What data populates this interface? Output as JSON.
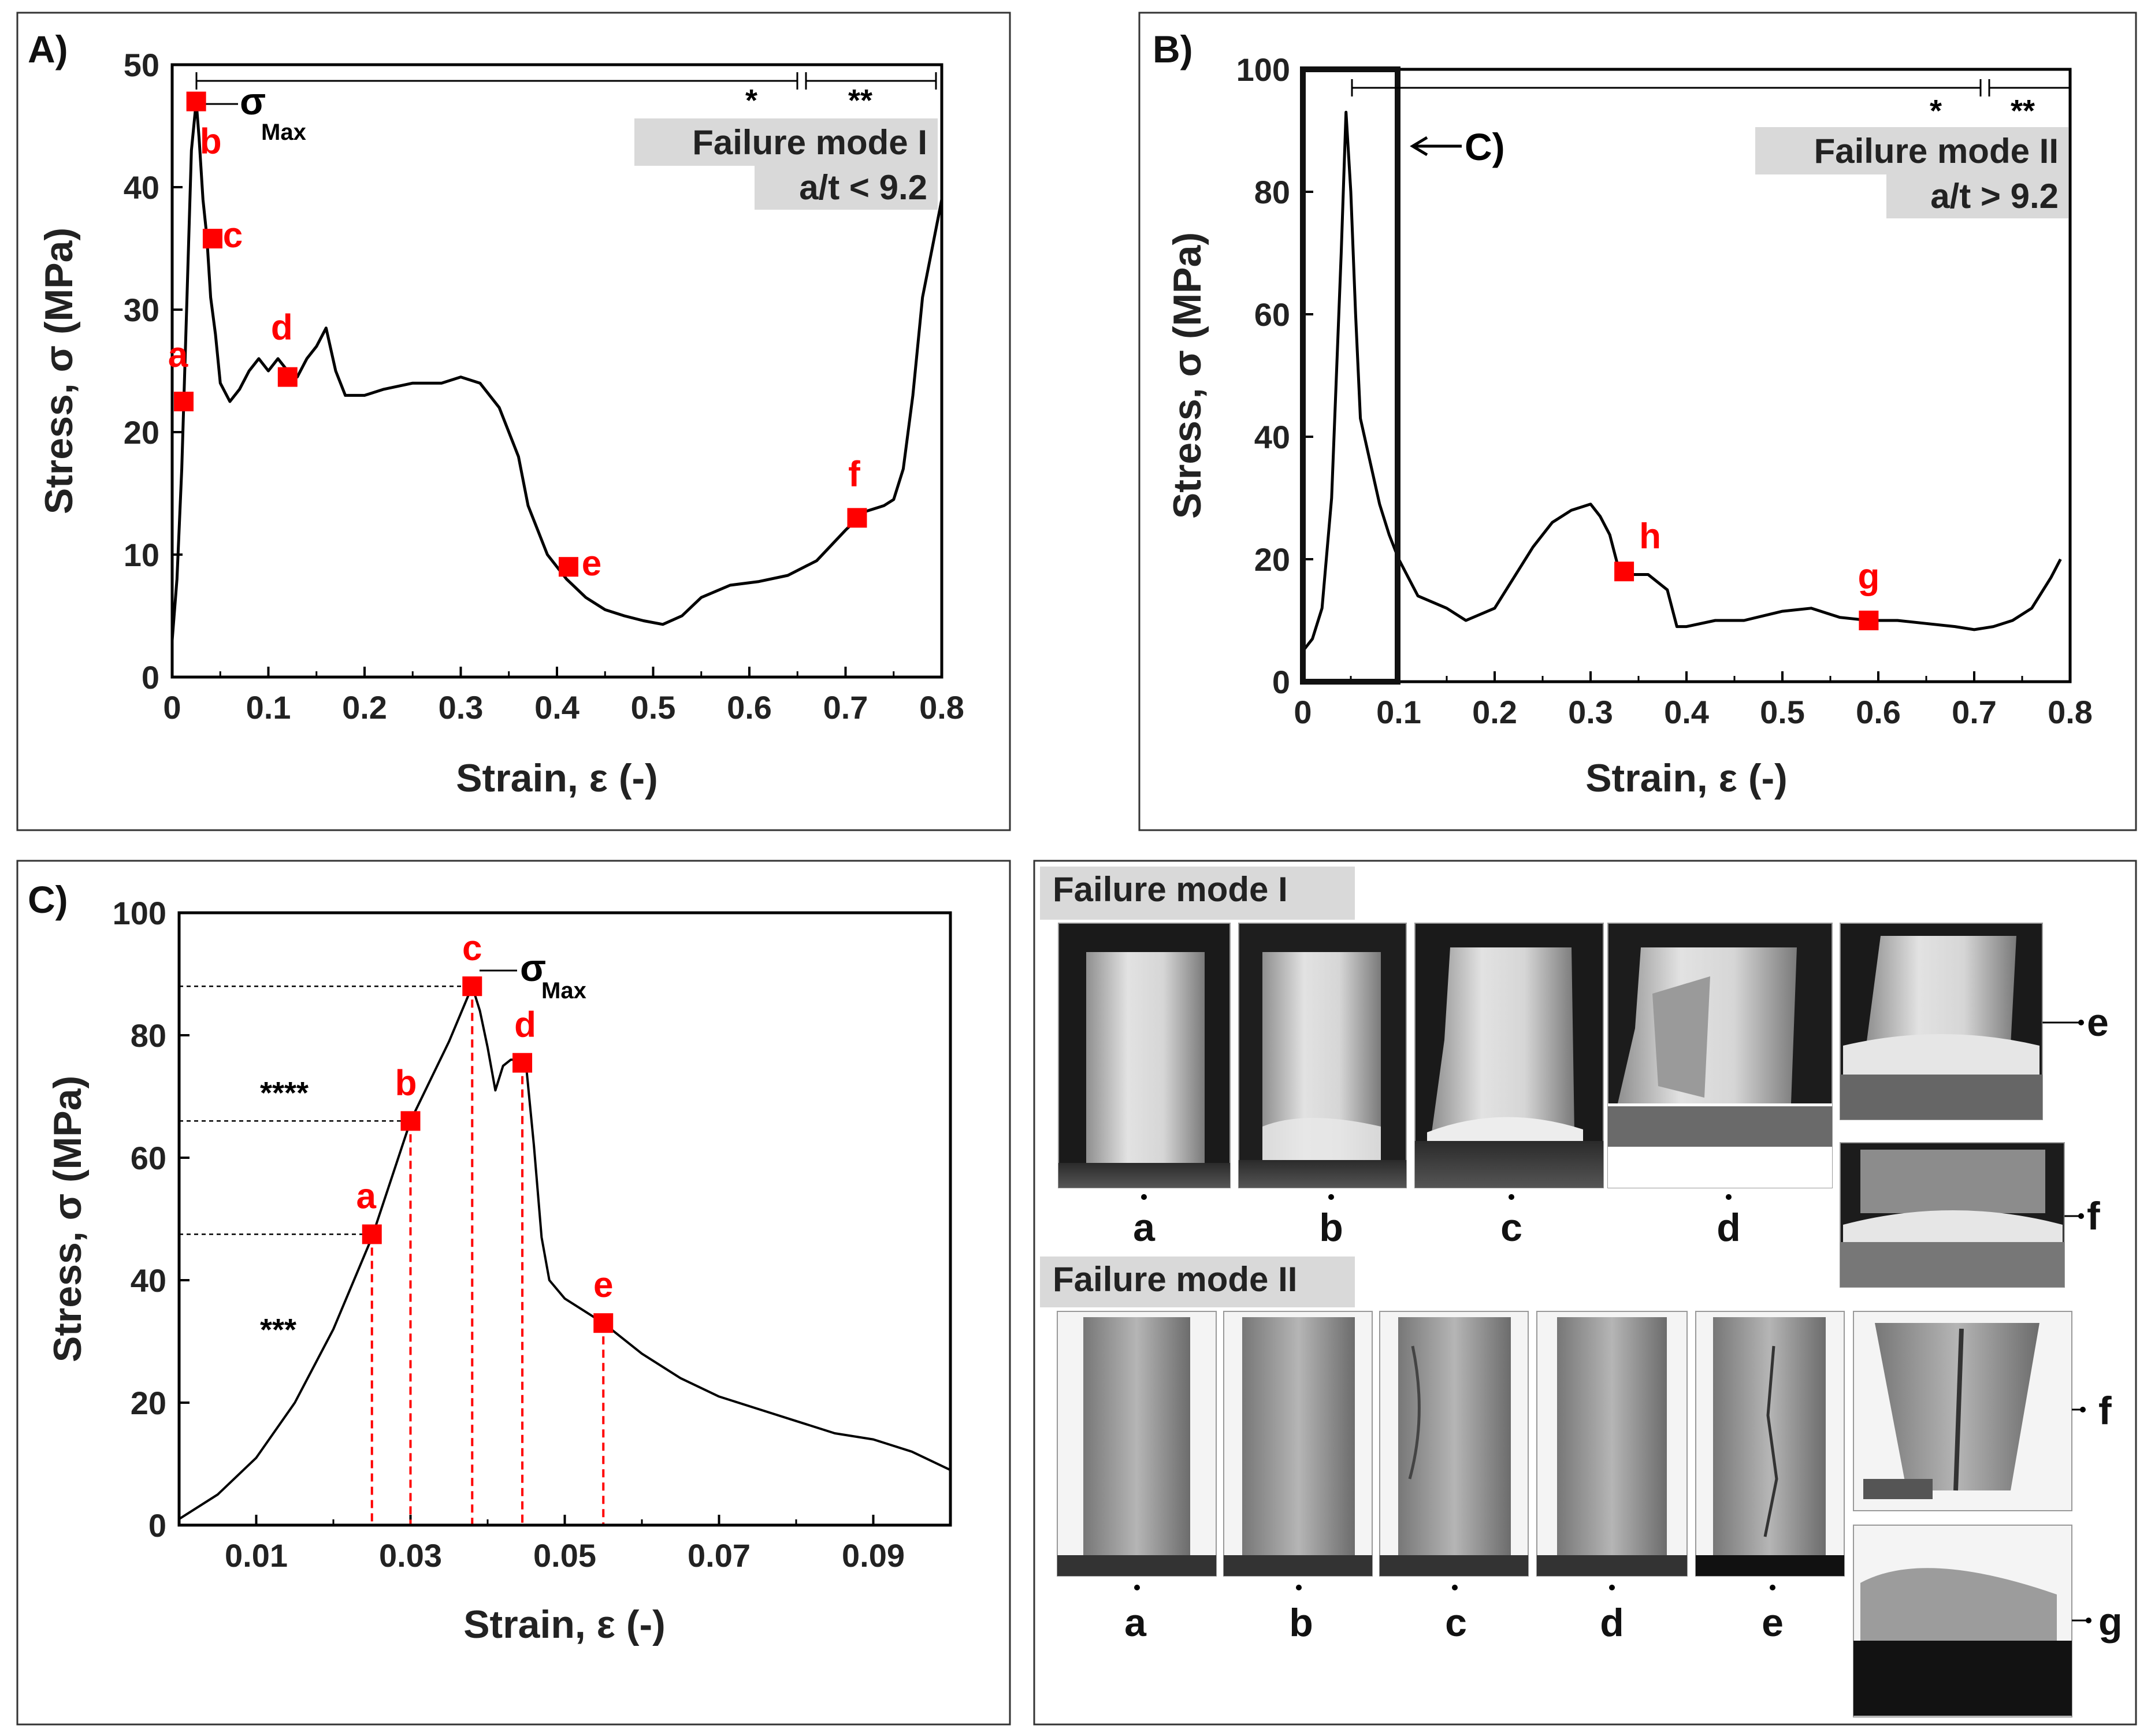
{
  "chart_data": [
    {
      "panel": "A)",
      "type": "line",
      "xlabel": "Strain, ε (-)",
      "ylabel": "Stress, σ (MPa)",
      "xlim": [
        0,
        0.8
      ],
      "ylim": [
        0,
        50
      ],
      "xticks": [
        0,
        0.1,
        0.2,
        0.3,
        0.4,
        0.5,
        0.6,
        0.7,
        0.8
      ],
      "yticks": [
        0,
        10,
        20,
        30,
        40,
        50
      ],
      "box_lines": [
        "Failure mode I",
        "a/t < 9.2"
      ],
      "region_labels": [
        "*",
        "**"
      ],
      "sigma_label": "σ",
      "sigma_sub": "Max",
      "series": [
        {
          "name": "stress-strain",
          "x": [
            0,
            0.005,
            0.01,
            0.015,
            0.02,
            0.025,
            0.028,
            0.032,
            0.036,
            0.04,
            0.045,
            0.05,
            0.06,
            0.07,
            0.08,
            0.09,
            0.1,
            0.11,
            0.12,
            0.13,
            0.14,
            0.15,
            0.16,
            0.17,
            0.18,
            0.2,
            0.22,
            0.25,
            0.28,
            0.3,
            0.32,
            0.34,
            0.36,
            0.37,
            0.38,
            0.39,
            0.4,
            0.41,
            0.43,
            0.45,
            0.47,
            0.49,
            0.51,
            0.53,
            0.55,
            0.58,
            0.61,
            0.64,
            0.67,
            0.7,
            0.72,
            0.74,
            0.75,
            0.76,
            0.77,
            0.78,
            0.79,
            0.8
          ],
          "y": [
            3,
            8,
            17,
            30,
            43,
            47,
            44,
            39,
            36,
            31,
            28,
            24,
            22.5,
            23.5,
            25,
            26,
            25,
            26,
            25,
            24.5,
            26,
            27,
            28.5,
            25,
            23,
            23,
            23.5,
            24,
            24,
            24.5,
            24,
            22,
            18,
            14,
            12,
            10,
            9,
            8,
            6.5,
            5.5,
            5,
            4.6,
            4.3,
            5,
            6.5,
            7.5,
            7.8,
            8.3,
            9.5,
            12,
            13.5,
            14,
            14.5,
            17,
            23,
            31,
            35,
            39
          ]
        }
      ],
      "markers": [
        {
          "label": "a",
          "x": 0.012,
          "y": 22.5
        },
        {
          "label": "b",
          "x": 0.025,
          "y": 47
        },
        {
          "label": "c",
          "x": 0.042,
          "y": 35.8
        },
        {
          "label": "d",
          "x": 0.12,
          "y": 24.5
        },
        {
          "label": "e",
          "x": 0.412,
          "y": 9
        },
        {
          "label": "f",
          "x": 0.712,
          "y": 13
        }
      ]
    },
    {
      "panel": "B)",
      "type": "line",
      "xlabel": "Strain, ε (-)",
      "ylabel": "Stress, σ (MPa)",
      "xlim": [
        0,
        0.8
      ],
      "ylim": [
        0,
        100
      ],
      "xticks": [
        0,
        0.1,
        0.2,
        0.3,
        0.4,
        0.5,
        0.6,
        0.7,
        0.8
      ],
      "yticks": [
        0,
        20,
        40,
        60,
        80,
        100
      ],
      "box_lines": [
        "Failure mode II",
        "a/t > 9.2"
      ],
      "region_labels": [
        "*",
        "**"
      ],
      "zoom_label": "C)",
      "zoom_range_x": [
        0,
        0.1
      ],
      "series": [
        {
          "name": "stress-strain",
          "x": [
            0,
            0.01,
            0.02,
            0.03,
            0.04,
            0.045,
            0.05,
            0.055,
            0.06,
            0.07,
            0.08,
            0.09,
            0.1,
            0.12,
            0.15,
            0.17,
            0.2,
            0.22,
            0.24,
            0.26,
            0.28,
            0.3,
            0.31,
            0.32,
            0.33,
            0.34,
            0.36,
            0.38,
            0.39,
            0.4,
            0.43,
            0.46,
            0.5,
            0.53,
            0.56,
            0.59,
            0.62,
            0.65,
            0.68,
            0.7,
            0.72,
            0.74,
            0.76,
            0.78,
            0.79
          ],
          "y": [
            5,
            7,
            12,
            30,
            70,
            93,
            80,
            60,
            43,
            36,
            29,
            24,
            20,
            14,
            12,
            10,
            12,
            17,
            22,
            26,
            28,
            29,
            27,
            24,
            18,
            17.5,
            17.5,
            15,
            9,
            9,
            10,
            10,
            11.5,
            12,
            10.5,
            10,
            10,
            9.5,
            9,
            8.5,
            9,
            10,
            12,
            17,
            20
          ]
        }
      ],
      "markers": [
        {
          "label": "h",
          "x": 0.335,
          "y": 18
        },
        {
          "label": "g",
          "x": 0.59,
          "y": 10
        }
      ]
    },
    {
      "panel": "C)",
      "type": "line",
      "xlabel": "Strain, ε (-)",
      "ylabel": "Stress, σ (MPa)",
      "xlim": [
        0,
        0.1
      ],
      "ylim": [
        0,
        100
      ],
      "xticks": [
        0.01,
        0.03,
        0.05,
        0.07,
        0.09
      ],
      "yticks": [
        0,
        20,
        40,
        60,
        80,
        100
      ],
      "sigma_label": "σ",
      "sigma_sub": "Max",
      "region_labels": [
        "****",
        "***"
      ],
      "series": [
        {
          "name": "stress-strain",
          "x": [
            0,
            0.005,
            0.01,
            0.015,
            0.02,
            0.025,
            0.03,
            0.035,
            0.038,
            0.039,
            0.04,
            0.041,
            0.042,
            0.043,
            0.044,
            0.045,
            0.046,
            0.047,
            0.048,
            0.05,
            0.055,
            0.06,
            0.065,
            0.07,
            0.075,
            0.08,
            0.085,
            0.09,
            0.095,
            0.1
          ],
          "y": [
            1,
            5,
            11,
            20,
            32,
            47,
            66,
            79,
            88,
            84,
            78,
            71,
            75,
            76,
            76,
            75,
            62,
            47,
            40,
            37,
            33,
            28,
            24,
            21,
            19,
            17,
            15,
            14,
            12,
            9
          ]
        }
      ],
      "markers": [
        {
          "label": "a",
          "x": 0.025,
          "y": 47.5
        },
        {
          "label": "b",
          "x": 0.03,
          "y": 66
        },
        {
          "label": "c",
          "x": 0.038,
          "y": 88
        },
        {
          "label": "d",
          "x": 0.0445,
          "y": 75.5
        },
        {
          "label": "e",
          "x": 0.055,
          "y": 33
        }
      ]
    }
  ],
  "photos": {
    "mode1_title": "Failure mode I",
    "mode2_title": "Failure mode II",
    "mode1_labels": [
      "a",
      "b",
      "c",
      "d"
    ],
    "mode1_side_labels": [
      "e",
      "f"
    ],
    "mode2_labels": [
      "a",
      "b",
      "c",
      "d",
      "e"
    ],
    "mode2_side_labels": [
      "f",
      "g"
    ]
  },
  "colors": {
    "line": "#000000",
    "marker": "#ff0000",
    "box": "#d9d9d9"
  }
}
